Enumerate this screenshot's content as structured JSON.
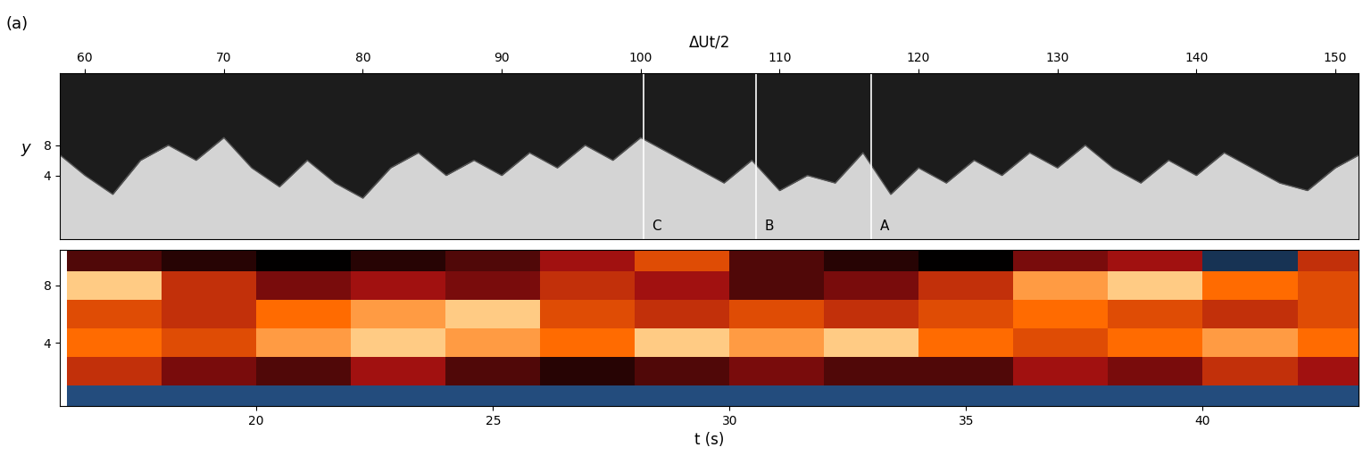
{
  "chart_data": [
    {
      "type": "interface",
      "panel_label": "(a)",
      "xlabel": "ΔUt/2",
      "ylabel": "y",
      "xlim": [
        58.2,
        151.7
      ],
      "ylim": [
        -4.4,
        17.5
      ],
      "xticks": [
        60,
        70,
        80,
        90,
        100,
        110,
        120,
        130,
        140,
        150
      ],
      "yticks": [
        4,
        8
      ],
      "grid": false,
      "x": [
        58,
        60,
        62,
        64,
        66,
        68,
        70,
        72,
        74,
        76,
        78,
        80,
        82,
        84,
        86,
        88,
        90,
        92,
        94,
        96,
        98,
        100,
        102,
        104,
        106,
        108,
        110,
        112,
        114,
        116,
        118,
        120,
        122,
        124,
        126,
        128,
        130,
        132,
        134,
        136,
        138,
        140,
        142,
        144,
        146,
        148,
        150,
        152
      ],
      "values": [
        7,
        4,
        1.5,
        6,
        8,
        6,
        9,
        5,
        2.5,
        6,
        3,
        1,
        5,
        7,
        4,
        6,
        4,
        7,
        5,
        8,
        6,
        9,
        7,
        5,
        3,
        6,
        2,
        4,
        3,
        7,
        1.5,
        5,
        3,
        6,
        4,
        7,
        5,
        8,
        5,
        3,
        6,
        4,
        7,
        5,
        3,
        2,
        5,
        7
      ],
      "markers": [
        {
          "x": 100.2,
          "label": "C"
        },
        {
          "x": 108.3,
          "label": "B"
        },
        {
          "x": 116.6,
          "label": "A"
        }
      ]
    },
    {
      "type": "heatmap",
      "xlabel": "t (s)",
      "xlim": [
        15.85,
        43.3
      ],
      "ylim": [
        -0.4,
        10.5
      ],
      "xticks": [
        20,
        25,
        30,
        35,
        40
      ],
      "yticks": [
        4,
        8
      ],
      "grid": false,
      "x_edges": [
        16,
        18,
        20,
        22,
        24,
        26,
        28,
        30,
        32,
        34,
        36,
        38,
        40,
        42,
        44
      ],
      "y_edges": [
        -0.4,
        1,
        3,
        5,
        7,
        9,
        10.5
      ],
      "clim": [
        -1,
        1
      ],
      "cells": [
        [
          -0.6,
          -0.6,
          -0.6,
          -0.6,
          -0.6,
          -0.6,
          -0.6,
          -0.6,
          -0.6,
          -0.6,
          -0.6,
          -0.6,
          -0.6,
          -0.6
        ],
        [
          0.5,
          0.3,
          0.2,
          0.4,
          0.2,
          0.1,
          0.2,
          0.3,
          0.2,
          0.2,
          0.4,
          0.3,
          0.5,
          0.4
        ],
        [
          0.7,
          0.6,
          0.8,
          0.9,
          0.8,
          0.7,
          0.9,
          0.8,
          0.9,
          0.7,
          0.6,
          0.7,
          0.8,
          0.7
        ],
        [
          0.6,
          0.5,
          0.7,
          0.8,
          0.9,
          0.6,
          0.5,
          0.6,
          0.5,
          0.6,
          0.7,
          0.6,
          0.5,
          0.6
        ],
        [
          0.9,
          0.5,
          0.3,
          0.4,
          0.3,
          0.5,
          0.4,
          0.2,
          0.3,
          0.5,
          0.8,
          0.9,
          0.7,
          0.6
        ],
        [
          0.2,
          0.1,
          0.0,
          0.1,
          0.2,
          0.4,
          0.6,
          0.2,
          0.1,
          0.0,
          0.3,
          0.4,
          -0.4,
          0.5
        ]
      ]
    }
  ]
}
